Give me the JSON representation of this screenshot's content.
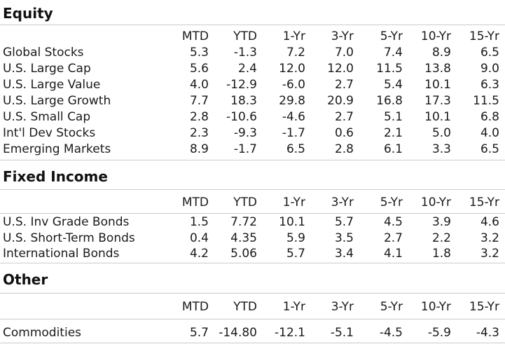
{
  "columns": [
    "MTD",
    "YTD",
    "1-Yr",
    "3-Yr",
    "5-Yr",
    "10-Yr",
    "15-Yr"
  ],
  "sections": [
    {
      "title": "Equity",
      "rows": [
        {
          "name": "Global Stocks",
          "values": [
            "5.3",
            "-1.3",
            "7.2",
            "7.0",
            "7.4",
            "8.9",
            "6.5"
          ]
        },
        {
          "name": "U.S. Large Cap",
          "values": [
            "5.6",
            "2.4",
            "12.0",
            "12.0",
            "11.5",
            "13.8",
            "9.0"
          ]
        },
        {
          "name": "U.S. Large Value",
          "values": [
            "4.0",
            "-12.9",
            "-6.0",
            "2.7",
            "5.4",
            "10.1",
            "6.3"
          ]
        },
        {
          "name": "U.S. Large Growth",
          "values": [
            "7.7",
            "18.3",
            "29.8",
            "20.9",
            "16.8",
            "17.3",
            "11.5"
          ]
        },
        {
          "name": "U.S. Small Cap",
          "values": [
            "2.8",
            "-10.6",
            "-4.6",
            "2.7",
            "5.1",
            "10.1",
            "6.8"
          ]
        },
        {
          "name": "Int'l Dev Stocks",
          "values": [
            "2.3",
            "-9.3",
            "-1.7",
            "0.6",
            "2.1",
            "5.0",
            "4.0"
          ]
        },
        {
          "name": "Emerging Markets",
          "values": [
            "8.9",
            "-1.7",
            "6.5",
            "2.8",
            "6.1",
            "3.3",
            "6.5"
          ]
        }
      ]
    },
    {
      "title": "Fixed Income",
      "rows": [
        {
          "name": "U.S. Inv Grade Bonds",
          "values": [
            "1.5",
            "7.72",
            "10.1",
            "5.7",
            "4.5",
            "3.9",
            "4.6"
          ]
        },
        {
          "name": "U.S. Short-Term Bonds",
          "values": [
            "0.4",
            "4.35",
            "5.9",
            "3.5",
            "2.7",
            "2.2",
            "3.2"
          ]
        },
        {
          "name": "International Bonds",
          "values": [
            "4.2",
            "5.06",
            "5.7",
            "3.4",
            "4.1",
            "1.8",
            "3.2"
          ]
        }
      ]
    },
    {
      "title": "Other",
      "rows": [
        {
          "name": "Commodities",
          "values": [
            "5.7",
            "-14.80",
            "-12.1",
            "-5.1",
            "-4.5",
            "-5.9",
            "-4.3"
          ]
        }
      ]
    }
  ]
}
